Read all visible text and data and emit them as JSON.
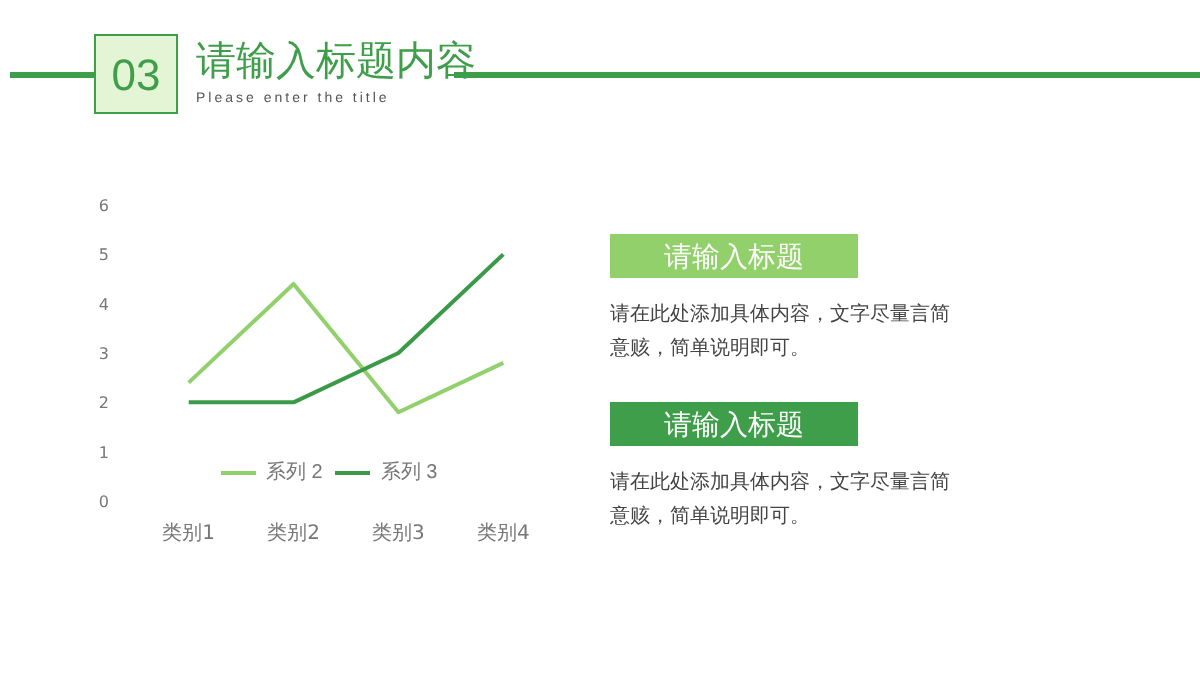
{
  "chart_data": {
    "type": "line",
    "title": "请输入标题内容",
    "subtitle": "Please enter the title",
    "categories": [
      "类别1",
      "类别2",
      "类别3",
      "类别4"
    ],
    "series": [
      {
        "name": "系列 2",
        "color": "#92d06c",
        "values": [
          2.4,
          4.4,
          1.8,
          2.8
        ]
      },
      {
        "name": "系列 3",
        "color": "#3a9a48",
        "values": [
          2,
          2,
          3,
          5
        ]
      }
    ],
    "ylim": [
      0,
      6
    ],
    "yticks": [
      0,
      1,
      2,
      3,
      4,
      5,
      6
    ],
    "grid": false,
    "legend": "bottom",
    "marker": "none",
    "line_style": "solid",
    "annotations": [
      "03",
      "请输入标题",
      "请在此处添加具体内容，文字尽量言简意赅，简单说明即可。",
      "请输入标题",
      "请在此处添加具体内容，文字尽量言简意赅，简单说明即可。"
    ]
  }
}
